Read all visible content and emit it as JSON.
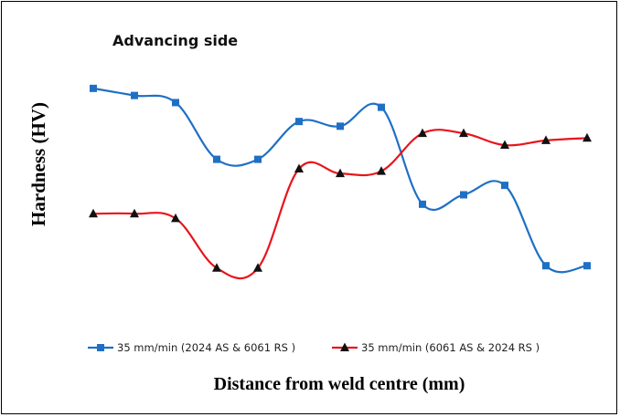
{
  "chart_data": {
    "type": "line",
    "title": "",
    "annotation": "Advancing side",
    "xlabel": "Distance from weld centre (mm)",
    "ylabel": "Hardness (HV)",
    "x_ticks_shown": false,
    "y_ticks_shown": false,
    "grid": false,
    "legend_position": "bottom",
    "series": [
      {
        "name": "35 mm/min (2024 AS & 6061 RS )",
        "color": "#1f6fc5",
        "marker": "square",
        "values": [
          100,
          97,
          94,
          70,
          70,
          86,
          84,
          92,
          51,
          55,
          59,
          25,
          25
        ]
      },
      {
        "name": "35 mm/min (6061 AS & 2024 RS )",
        "color": "#e8141b",
        "marker": "triangle",
        "values": [
          47,
          47,
          45,
          24,
          24,
          66,
          64,
          65,
          81,
          81,
          76,
          78,
          79
        ]
      }
    ],
    "ylim": [
      0,
      115
    ],
    "x_count": 13
  }
}
